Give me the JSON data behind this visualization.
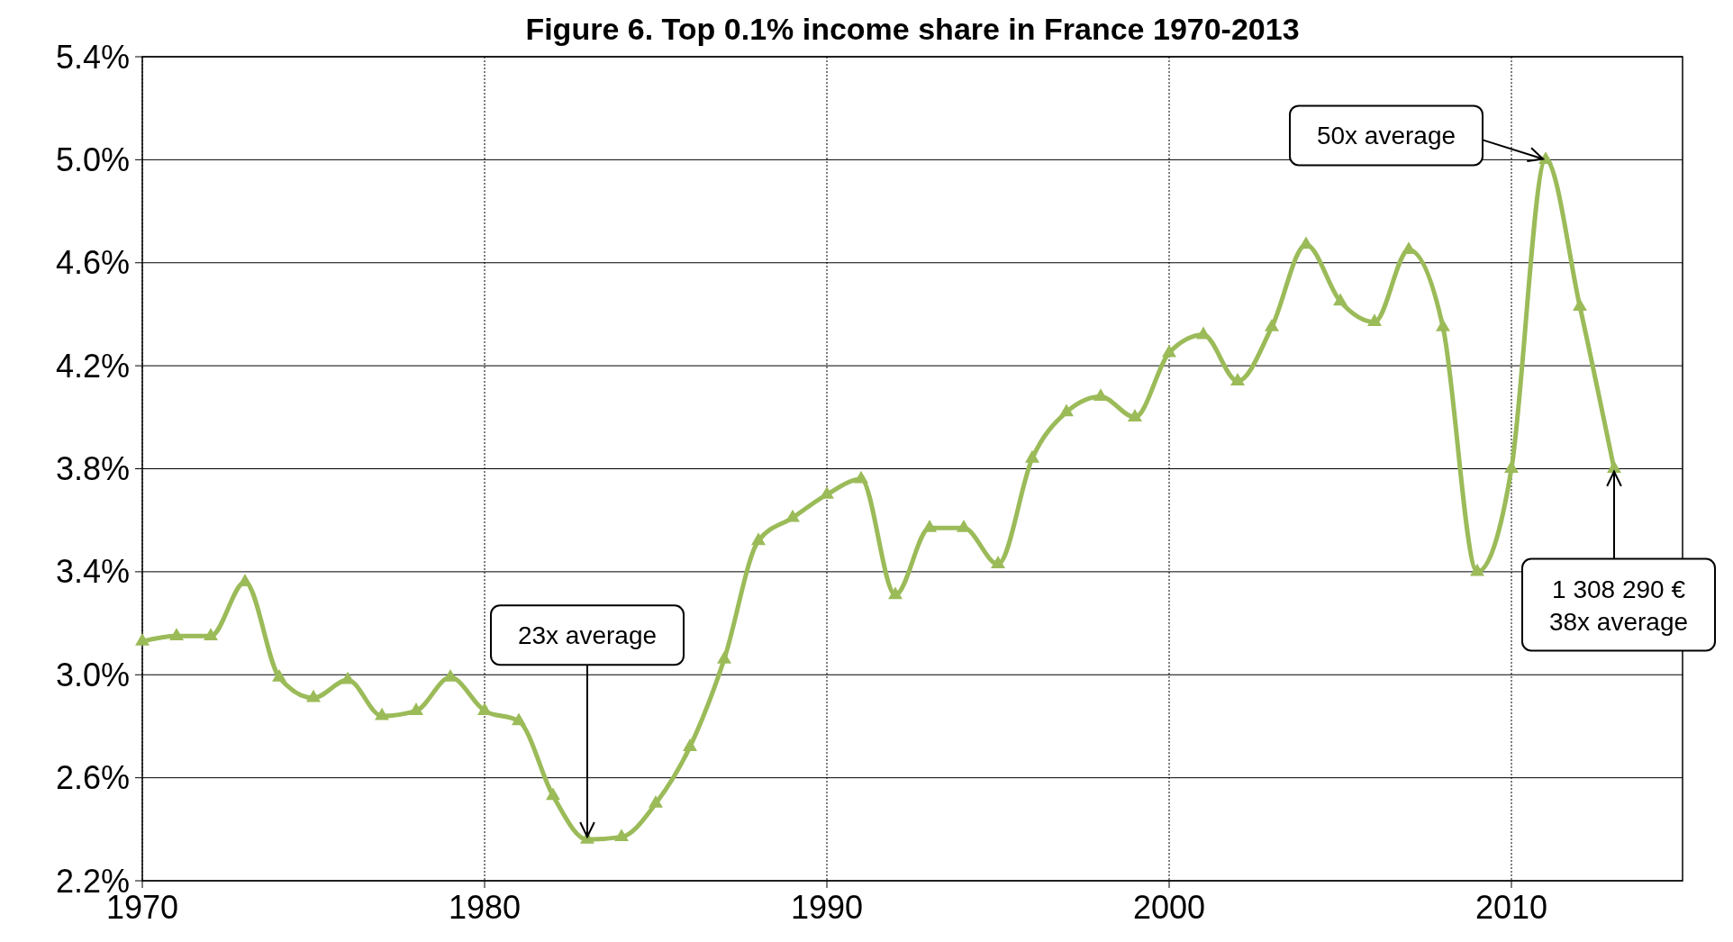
{
  "chart_data": {
    "type": "line",
    "title": "Figure 6. Top 0.1% income share in France 1970-2013",
    "x": [
      1970,
      1971,
      1972,
      1973,
      1974,
      1975,
      1976,
      1977,
      1978,
      1979,
      1980,
      1981,
      1982,
      1983,
      1984,
      1985,
      1986,
      1987,
      1988,
      1989,
      1990,
      1991,
      1992,
      1993,
      1994,
      1995,
      1996,
      1997,
      1998,
      1999,
      2000,
      2001,
      2002,
      2003,
      2004,
      2005,
      2006,
      2007,
      2008,
      2009,
      2010,
      2011,
      2012,
      2013
    ],
    "series": [
      {
        "color": "#9bbb59",
        "values": [
          3.13,
          3.15,
          3.15,
          3.36,
          2.99,
          2.91,
          2.98,
          2.84,
          2.86,
          2.99,
          2.86,
          2.82,
          2.53,
          2.36,
          2.37,
          2.5,
          2.72,
          3.06,
          3.52,
          3.61,
          3.7,
          3.76,
          3.31,
          3.57,
          3.57,
          3.43,
          3.84,
          4.02,
          4.08,
          4.0,
          4.25,
          4.32,
          4.14,
          4.35,
          4.67,
          4.45,
          4.37,
          4.65,
          4.35,
          3.4,
          3.8,
          5.0,
          4.43,
          3.8
        ]
      }
    ],
    "xlim": [
      1970,
      2015
    ],
    "xticks": [
      1970,
      1980,
      1990,
      2000,
      2010
    ],
    "ylim": [
      2.2,
      5.4
    ],
    "yticks": [
      {
        "value": 2.2,
        "label": "2.2%"
      },
      {
        "value": 2.6,
        "label": "2.6%"
      },
      {
        "value": 3.0,
        "label": "3.0%"
      },
      {
        "value": 3.4,
        "label": "3.4%"
      },
      {
        "value": 3.8,
        "label": "3.8%"
      },
      {
        "value": 4.2,
        "label": "4.2%"
      },
      {
        "value": 4.6,
        "label": "4.6%"
      },
      {
        "value": 5.0,
        "label": "5.0%"
      },
      {
        "value": 5.4,
        "label": "5.4%"
      }
    ],
    "grid": true,
    "marker": "triangle",
    "line_style": "solid",
    "annotations": [
      {
        "text": "23x average",
        "x": 1983,
        "y": 2.36
      },
      {
        "text": "50x average",
        "x": 2011,
        "y": 5.0
      },
      {
        "text": "1 308 290 €\n38x average",
        "x": 2013,
        "y": 3.8
      }
    ]
  }
}
